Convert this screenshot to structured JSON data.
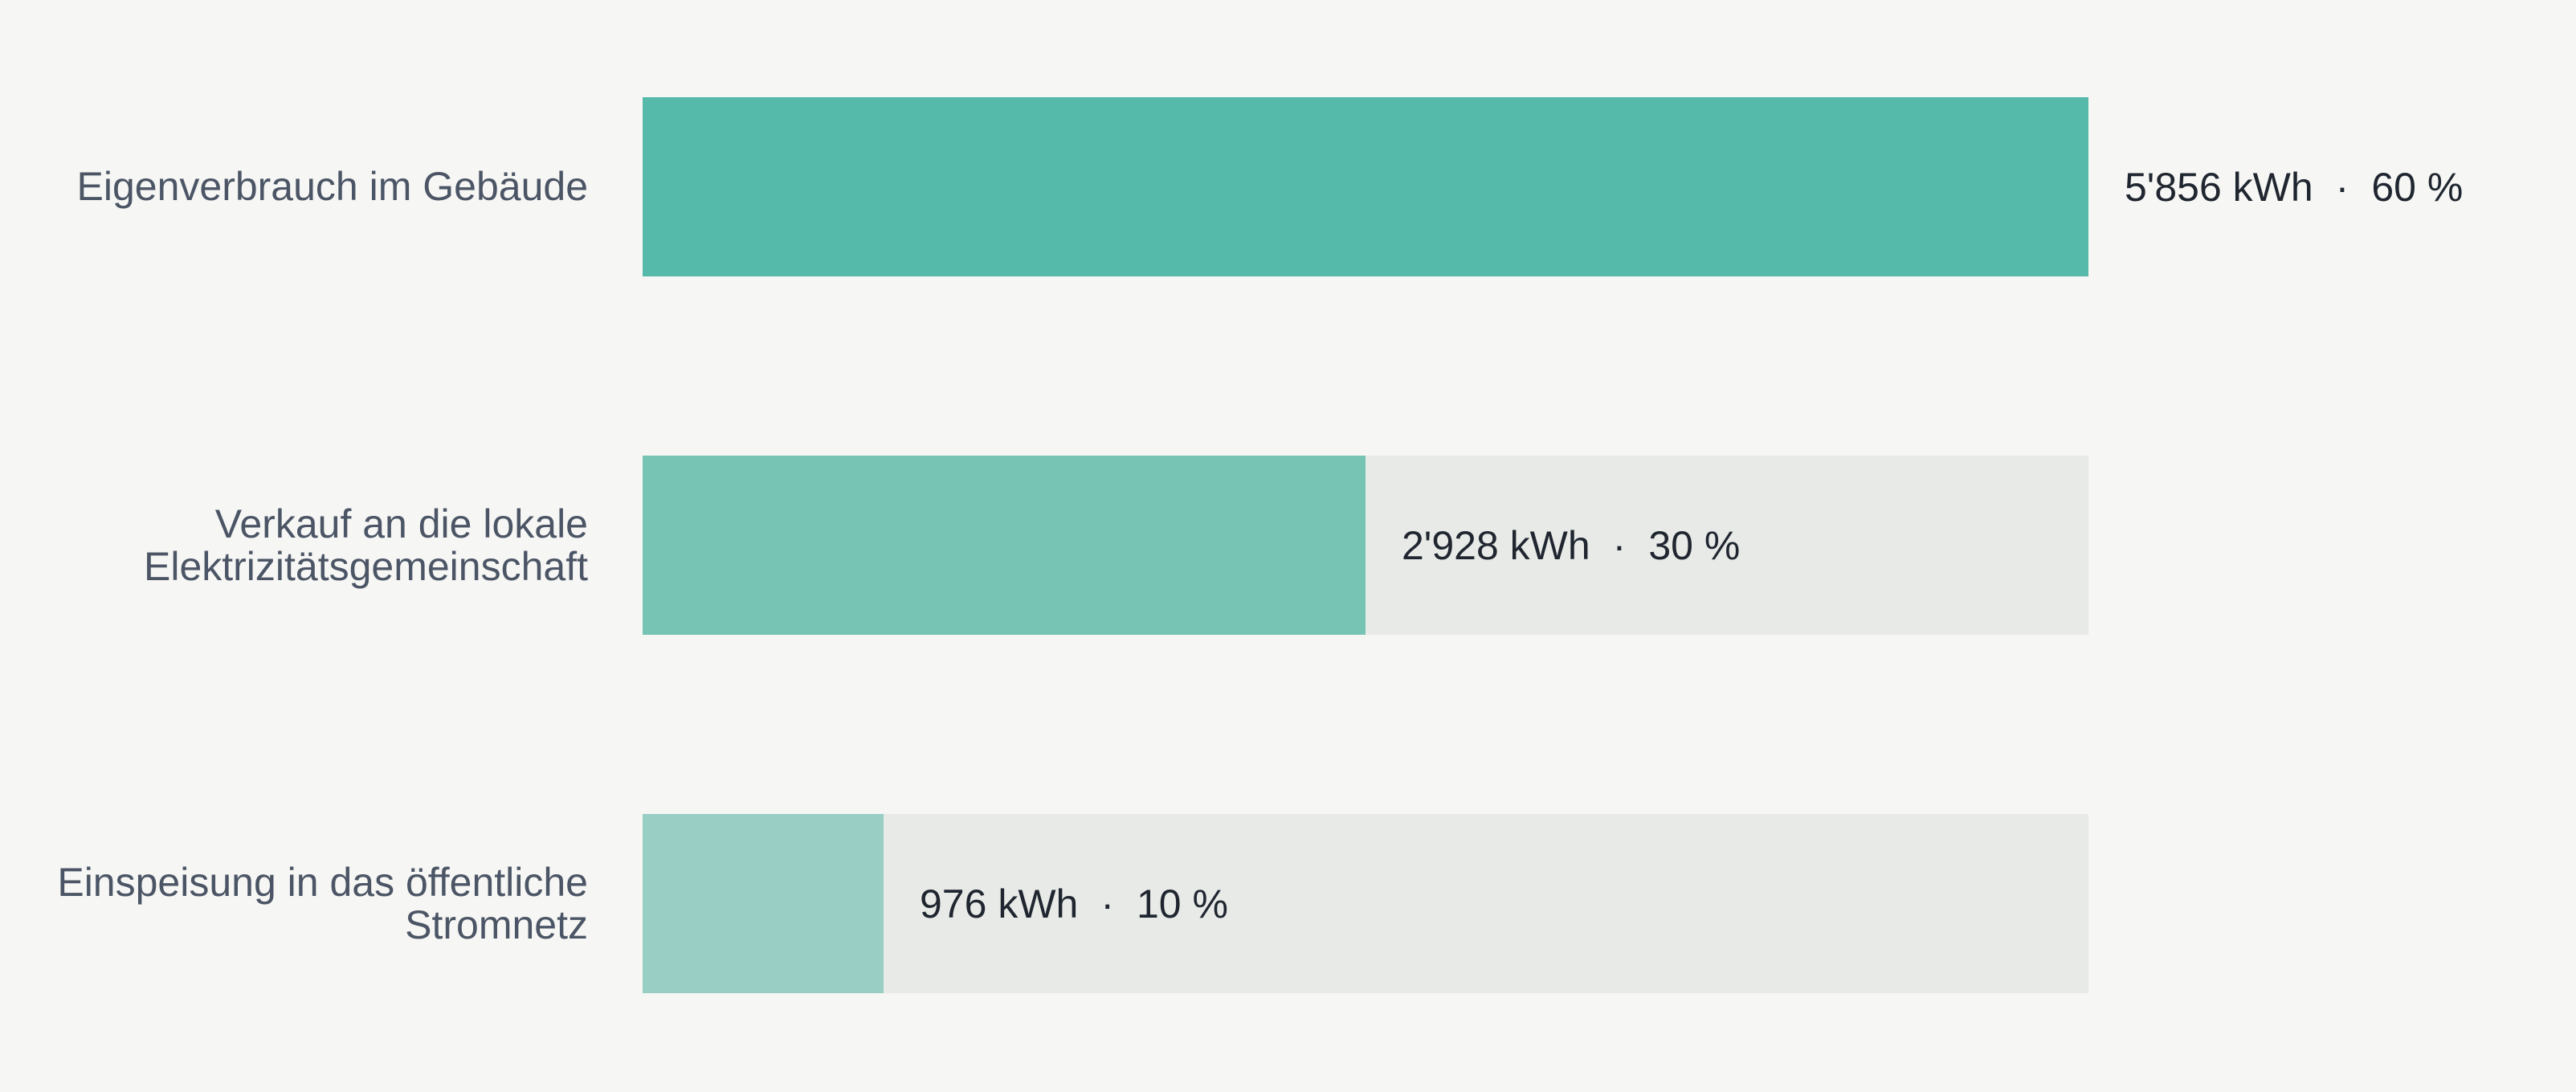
{
  "chart_data": {
    "type": "bar",
    "orientation": "horizontal",
    "categories": [
      "Eigenverbrauch im Gebäude",
      "Verkauf an die lokale Elektrizitätsgemeinschaft",
      "Einspeisung in das öffentliche Stromnetz"
    ],
    "values": [
      5856,
      2928,
      976
    ],
    "value_labels": [
      "5'856 kWh",
      "2'928 kWh",
      "976 kWh"
    ],
    "shares": [
      60,
      30,
      10
    ],
    "share_labels": [
      "60 %",
      "30 %",
      "10 %"
    ],
    "separator": "·",
    "colors": [
      "#55baaa",
      "#77c4b5",
      "#99cec5"
    ],
    "track_color": "#e8eae7"
  }
}
